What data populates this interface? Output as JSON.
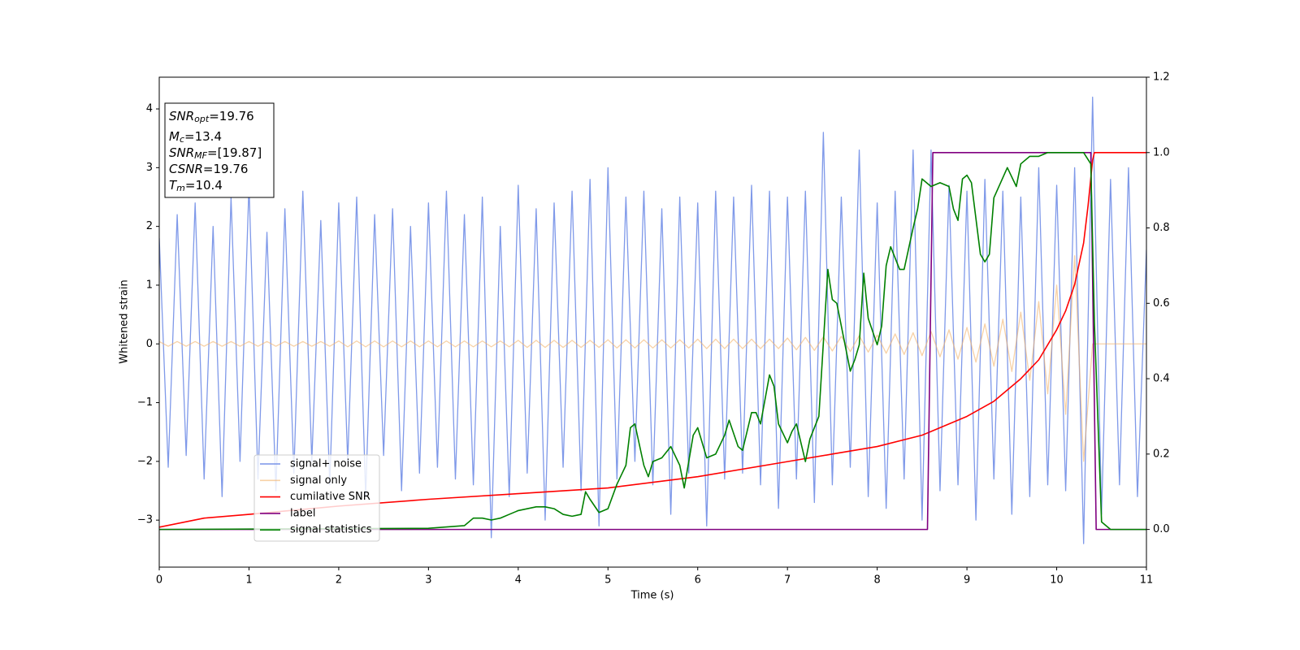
{
  "chart_data": {
    "type": "line",
    "xlabel": "Time (s)",
    "ylabel": "Whitened strain",
    "xlim": [
      0,
      11
    ],
    "xticks": [
      0,
      1,
      2,
      3,
      4,
      5,
      6,
      7,
      8,
      9,
      10,
      11
    ],
    "ylim": [
      -3.8,
      4.54
    ],
    "yticks": [
      {
        "value": -3,
        "label": "−3"
      },
      {
        "value": -2,
        "label": "−2"
      },
      {
        "value": -1,
        "label": "−1"
      },
      0,
      1,
      2,
      3,
      4
    ],
    "y2lim": [
      -0.1,
      1.2
    ],
    "y2ticks": [
      {
        "value": 0,
        "label": "0.0"
      },
      {
        "value": 0.2,
        "label": "0.2"
      },
      {
        "value": 0.4,
        "label": "0.4"
      },
      {
        "value": 0.6,
        "label": "0.6"
      },
      {
        "value": 0.8,
        "label": "0.8"
      },
      {
        "value": 1,
        "label": "1.0"
      },
      {
        "value": 1.2,
        "label": "1.2"
      }
    ],
    "legend": "lower left",
    "annotation": [
      {
        "main": "SNR",
        "sub": "opt",
        "text": "=19.76"
      },
      {
        "main": "M",
        "sub": "c",
        "text": "=13.4"
      },
      {
        "main": "SNR",
        "sub": "MF",
        "text": "=[19.87]"
      },
      {
        "main": "CSNR",
        "sub": null,
        "text": "=19.76"
      },
      {
        "main": "T",
        "sub": "m",
        "text": "=10.4"
      }
    ],
    "x": [
      0,
      0.1,
      0.2,
      0.3,
      0.4,
      0.5,
      0.6,
      0.7,
      0.8,
      0.9,
      1,
      1.1,
      1.2,
      1.3,
      1.4,
      1.5,
      1.6,
      1.7,
      1.8,
      1.9,
      2,
      2.1,
      2.2,
      2.3,
      2.4,
      2.5,
      2.6,
      2.7,
      2.8,
      2.9,
      3,
      3.1,
      3.2,
      3.3,
      3.4,
      3.5,
      3.6,
      3.7,
      3.8,
      3.9,
      4,
      4.1,
      4.2,
      4.3,
      4.4,
      4.5,
      4.6,
      4.7,
      4.8,
      4.9,
      5,
      5.1,
      5.2,
      5.3,
      5.4,
      5.5,
      5.6,
      5.7,
      5.8,
      5.9,
      6,
      6.1,
      6.2,
      6.3,
      6.4,
      6.5,
      6.6,
      6.7,
      6.8,
      6.9,
      7,
      7.1,
      7.2,
      7.3,
      7.4,
      7.5,
      7.6,
      7.7,
      7.8,
      7.9,
      8,
      8.1,
      8.2,
      8.3,
      8.4,
      8.5,
      8.6,
      8.7,
      8.8,
      8.9,
      9,
      9.1,
      9.2,
      9.3,
      9.4,
      9.5,
      9.6,
      9.7,
      9.8,
      9.9,
      10,
      10.1,
      10.2,
      10.3,
      10.4,
      10.5,
      10.6,
      10.7,
      10.8,
      10.9,
      11
    ],
    "series": [
      {
        "name": "signal+ noise",
        "color": "#7893e8",
        "values": [
          1.8,
          -2.1,
          2.2,
          -1.9,
          2.4,
          -2.3,
          2.0,
          -2.6,
          2.5,
          -2.0,
          2.7,
          -2.3,
          1.9,
          -2.5,
          2.3,
          -2.2,
          2.6,
          -2.0,
          2.1,
          -2.4,
          2.4,
          -2.0,
          2.5,
          -2.6,
          2.2,
          -1.9,
          2.3,
          -2.5,
          2.0,
          -2.2,
          2.4,
          -2.1,
          2.6,
          -2.3,
          2.2,
          -2.4,
          2.5,
          -3.3,
          2.0,
          -2.6,
          2.7,
          -2.2,
          2.3,
          -3.0,
          2.4,
          -2.1,
          2.6,
          -2.5,
          2.8,
          -3.1,
          3.0,
          -2.3,
          2.5,
          -2.0,
          2.6,
          -2.4,
          2.3,
          -2.9,
          2.5,
          -2.2,
          2.4,
          -3.1,
          2.6,
          -2.3,
          2.5,
          -2.2,
          2.7,
          -2.4,
          2.6,
          -2.8,
          2.5,
          -2.3,
          2.6,
          -2.7,
          3.6,
          -2.4,
          2.5,
          -2.1,
          3.3,
          -2.6,
          2.4,
          -2.8,
          2.6,
          -2.3,
          3.3,
          -3.0,
          3.3,
          -2.5,
          2.7,
          -2.4,
          2.6,
          -3.0,
          2.8,
          -2.3,
          2.6,
          -2.9,
          2.5,
          -2.6,
          3.0,
          -2.4,
          2.7,
          -2.5,
          3.0,
          -3.4,
          4.2,
          -2.9,
          2.8,
          -2.4,
          3.0,
          -2.6,
          1.6
        ]
      },
      {
        "name": "signal only",
        "color": "#f2b36a",
        "values": [
          0.04,
          -0.04,
          0.04,
          -0.04,
          0.04,
          -0.04,
          0.04,
          -0.04,
          0.04,
          -0.04,
          0.04,
          -0.04,
          0.04,
          -0.04,
          0.04,
          -0.04,
          0.04,
          -0.04,
          0.04,
          -0.04,
          0.05,
          -0.05,
          0.05,
          -0.05,
          0.05,
          -0.05,
          0.05,
          -0.05,
          0.05,
          -0.05,
          0.05,
          -0.05,
          0.05,
          -0.05,
          0.05,
          -0.05,
          0.05,
          -0.05,
          0.05,
          -0.05,
          0.06,
          -0.06,
          0.06,
          -0.06,
          0.06,
          -0.06,
          0.06,
          -0.06,
          0.06,
          -0.06,
          0.07,
          -0.07,
          0.07,
          -0.07,
          0.07,
          -0.07,
          0.07,
          -0.07,
          0.07,
          -0.07,
          0.08,
          -0.08,
          0.08,
          -0.08,
          0.08,
          -0.08,
          0.08,
          -0.08,
          0.08,
          -0.08,
          0.1,
          -0.1,
          0.11,
          -0.11,
          0.12,
          -0.12,
          0.13,
          -0.13,
          0.14,
          -0.14,
          0.15,
          -0.16,
          0.17,
          -0.18,
          0.19,
          -0.2,
          0.21,
          -0.22,
          0.24,
          -0.26,
          0.28,
          -0.31,
          0.34,
          -0.38,
          0.42,
          -0.47,
          0.54,
          -0.62,
          0.72,
          -0.85,
          1.0,
          -1.2,
          1.5,
          -2.0,
          0,
          0,
          0,
          0,
          0,
          0,
          0
        ]
      },
      {
        "name": "cumilative SNR",
        "color": "#ff0000",
        "axis": "y2",
        "x": [
          0,
          0.5,
          1,
          2,
          3,
          4,
          5,
          6,
          7,
          7.5,
          8,
          8.5,
          9,
          9.3,
          9.6,
          9.8,
          10,
          10.1,
          10.2,
          10.3,
          10.35,
          10.4,
          10.42,
          11
        ],
        "values": [
          0.006,
          0.03,
          0.04,
          0.062,
          0.08,
          0.095,
          0.11,
          0.14,
          0.18,
          0.2,
          0.22,
          0.25,
          0.3,
          0.34,
          0.4,
          0.45,
          0.53,
          0.58,
          0.65,
          0.76,
          0.86,
          0.98,
          1.0,
          1.0
        ]
      },
      {
        "name": "label",
        "color": "#800080",
        "axis": "y2",
        "x": [
          0,
          8.56,
          8.62,
          10.38,
          10.44,
          11
        ],
        "values": [
          0,
          0,
          1,
          1,
          0,
          0
        ]
      },
      {
        "name": "signal statistics",
        "color": "#008000",
        "axis": "y2",
        "x": [
          0,
          3,
          3.4,
          3.5,
          3.6,
          3.7,
          3.8,
          3.9,
          4.0,
          4.2,
          4.3,
          4.4,
          4.5,
          4.6,
          4.7,
          4.75,
          4.8,
          4.9,
          5.0,
          5.1,
          5.2,
          5.25,
          5.3,
          5.4,
          5.45,
          5.5,
          5.6,
          5.7,
          5.8,
          5.85,
          5.95,
          6.0,
          6.1,
          6.2,
          6.3,
          6.35,
          6.45,
          6.5,
          6.6,
          6.65,
          6.7,
          6.8,
          6.85,
          6.9,
          7.0,
          7.05,
          7.1,
          7.2,
          7.25,
          7.35,
          7.45,
          7.5,
          7.55,
          7.7,
          7.75,
          7.8,
          7.85,
          7.9,
          8.0,
          8.05,
          8.1,
          8.15,
          8.25,
          8.3,
          8.4,
          8.45,
          8.5,
          8.6,
          8.7,
          8.8,
          8.85,
          8.9,
          8.95,
          9.0,
          9.05,
          9.15,
          9.2,
          9.25,
          9.3,
          9.45,
          9.55,
          9.6,
          9.7,
          9.8,
          9.9,
          10.3,
          10.38,
          10.42,
          10.5,
          10.6,
          11
        ],
        "values": [
          0,
          0.003,
          0.01,
          0.03,
          0.03,
          0.025,
          0.03,
          0.04,
          0.05,
          0.06,
          0.06,
          0.055,
          0.04,
          0.035,
          0.04,
          0.1,
          0.08,
          0.045,
          0.055,
          0.12,
          0.17,
          0.27,
          0.28,
          0.17,
          0.14,
          0.18,
          0.19,
          0.22,
          0.17,
          0.11,
          0.25,
          0.27,
          0.19,
          0.2,
          0.25,
          0.29,
          0.22,
          0.21,
          0.31,
          0.31,
          0.28,
          0.41,
          0.38,
          0.28,
          0.23,
          0.26,
          0.28,
          0.18,
          0.24,
          0.3,
          0.69,
          0.61,
          0.6,
          0.42,
          0.45,
          0.49,
          0.68,
          0.56,
          0.49,
          0.54,
          0.7,
          0.75,
          0.69,
          0.69,
          0.8,
          0.85,
          0.93,
          0.91,
          0.92,
          0.91,
          0.85,
          0.82,
          0.93,
          0.94,
          0.92,
          0.73,
          0.71,
          0.73,
          0.88,
          0.96,
          0.91,
          0.97,
          0.99,
          0.99,
          1.0,
          1.0,
          0.97,
          0.55,
          0.02,
          0.0,
          0.0
        ]
      }
    ]
  }
}
